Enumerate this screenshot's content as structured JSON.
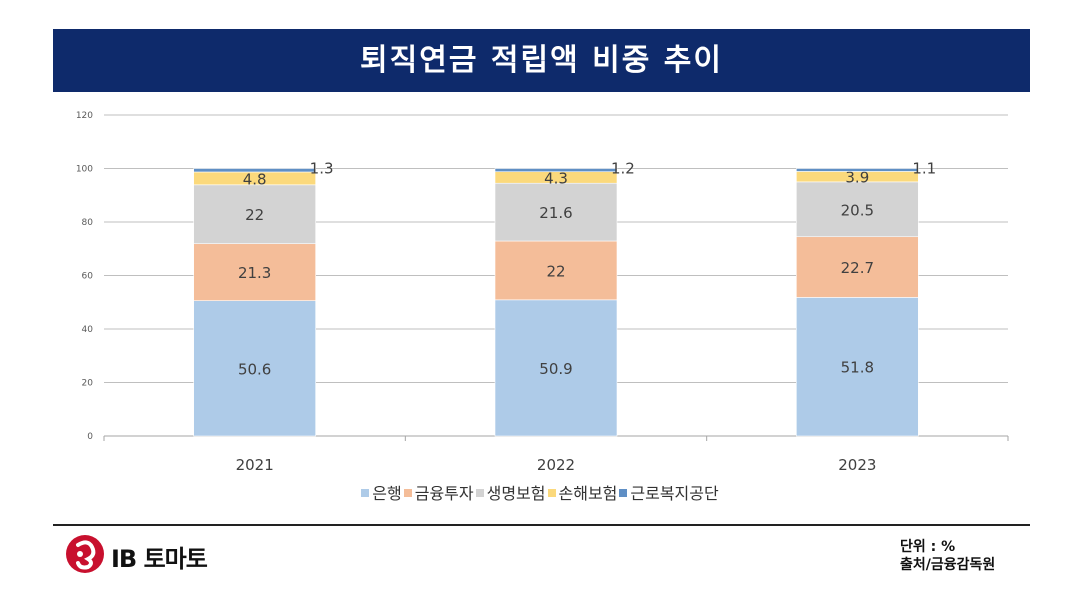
{
  "header": {
    "title": "퇴직연금 적립액 비중 추이"
  },
  "chart_data": {
    "type": "bar",
    "stacked": true,
    "categories": [
      "2021",
      "2022",
      "2023"
    ],
    "series": [
      {
        "name": "은행",
        "values": [
          50.6,
          50.9,
          51.8
        ],
        "color": "#aecbe8"
      },
      {
        "name": "금융투자",
        "values": [
          21.3,
          22,
          22.7
        ],
        "color": "#f4bd99"
      },
      {
        "name": "생명보험",
        "values": [
          22,
          21.6,
          20.5
        ],
        "color": "#d3d3d3"
      },
      {
        "name": "손해보험",
        "values": [
          4.8,
          4.3,
          3.9
        ],
        "color": "#fbd97c"
      },
      {
        "name": "근로복지공단",
        "values": [
          1.3,
          1.2,
          1.1
        ],
        "color": "#5f8fc5"
      }
    ],
    "ylim": [
      0,
      120
    ],
    "yticks": [
      0,
      20,
      40,
      60,
      80,
      100,
      120
    ],
    "grid": true,
    "legend": "bottom"
  },
  "footer": {
    "logo_text": "IB 토마토",
    "unit_label": "단위 : %",
    "source_label": "출처/금융감독원"
  }
}
